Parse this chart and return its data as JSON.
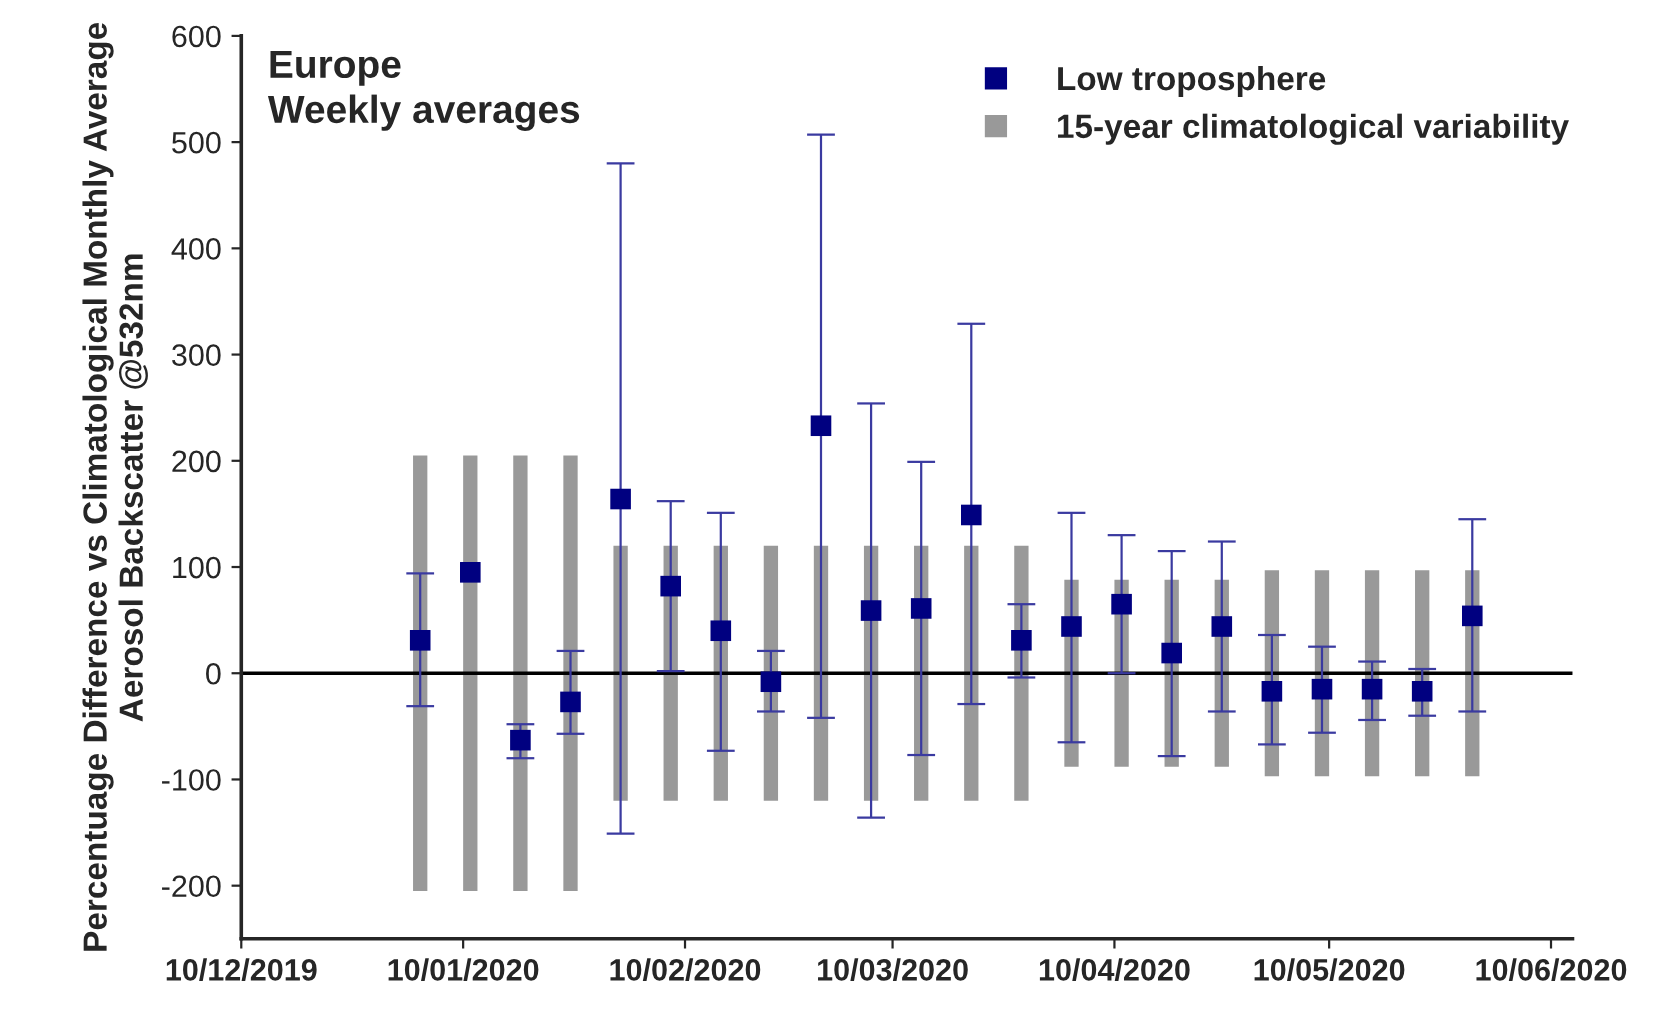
{
  "chart_data": {
    "type": "bar",
    "title": "Europe",
    "subtitle": "Weekly averages",
    "ylabel": "Percentuage Difference vs Climatological Monthly Average\nAerosol Backscatter @532nm",
    "x": [
      "2020-01-04",
      "2020-01-11",
      "2020-01-18",
      "2020-01-25",
      "2020-02-01",
      "2020-02-08",
      "2020-02-15",
      "2020-02-22",
      "2020-02-29",
      "2020-03-07",
      "2020-03-14",
      "2020-03-21",
      "2020-03-28",
      "2020-04-04",
      "2020-04-11",
      "2020-04-18",
      "2020-04-25",
      "2020-05-02",
      "2020-05-09",
      "2020-05-16",
      "2020-05-23",
      "2020-05-30"
    ],
    "series": [
      {
        "name": "15-year climatological variability",
        "color": "#999999",
        "values": [
          410,
          410,
          410,
          410,
          240,
          240,
          240,
          240,
          240,
          240,
          240,
          240,
          240,
          176,
          176,
          176,
          176,
          194,
          194,
          194,
          194,
          194
        ],
        "base": [
          -205,
          -205,
          -205,
          -205,
          -120,
          -120,
          -120,
          -120,
          -120,
          -120,
          -120,
          -120,
          -120,
          -88,
          -88,
          -88,
          -88,
          -97,
          -97,
          -97,
          -97,
          -97
        ]
      },
      {
        "name": "Low troposphere",
        "type": "scatter",
        "color": "#000080",
        "marker": "square",
        "values": [
          31,
          95,
          -63,
          -27,
          164,
          82,
          40,
          -8,
          233,
          59,
          61,
          149,
          31,
          44,
          65,
          19,
          44,
          -17,
          -15,
          -15,
          -17,
          54
        ],
        "errors": [
          [
            -31,
            94
          ],
          null,
          [
            -80,
            -48
          ],
          [
            -57,
            21
          ],
          [
            -151,
            480
          ],
          [
            2,
            162
          ],
          [
            -73,
            151
          ],
          [
            -36,
            21
          ],
          [
            -42,
            507
          ],
          [
            -136,
            254
          ],
          [
            -77,
            199
          ],
          [
            -29,
            329
          ],
          [
            -4,
            65
          ],
          [
            -65,
            151
          ],
          [
            0,
            130
          ],
          [
            -78,
            115
          ],
          [
            -36,
            124
          ],
          [
            -67,
            36
          ],
          [
            -56,
            25
          ],
          [
            -44,
            11
          ],
          [
            -40,
            4
          ],
          [
            -36,
            145
          ]
        ]
      }
    ],
    "xlim": [
      "2019-12-10",
      "2020-06-13"
    ],
    "xticks": [
      {
        "value": "2019-12-10",
        "label": "10/12/2019"
      },
      {
        "value": "2020-01-10",
        "label": "10/01/2020"
      },
      {
        "value": "2020-02-10",
        "label": "10/02/2020"
      },
      {
        "value": "2020-03-10",
        "label": "10/03/2020"
      },
      {
        "value": "2020-04-10",
        "label": "10/04/2020"
      },
      {
        "value": "2020-05-10",
        "label": "10/05/2020"
      },
      {
        "value": "2020-06-10",
        "label": "10/06/2020"
      }
    ],
    "ylim": [
      -250,
      600
    ],
    "yticks": [
      -200,
      -100,
      0,
      100,
      200,
      300,
      400,
      500,
      600
    ],
    "ref_lines": [
      {
        "axis": "y",
        "value": 0,
        "color": "#000000"
      }
    ],
    "grid": false,
    "legend": "top right"
  }
}
